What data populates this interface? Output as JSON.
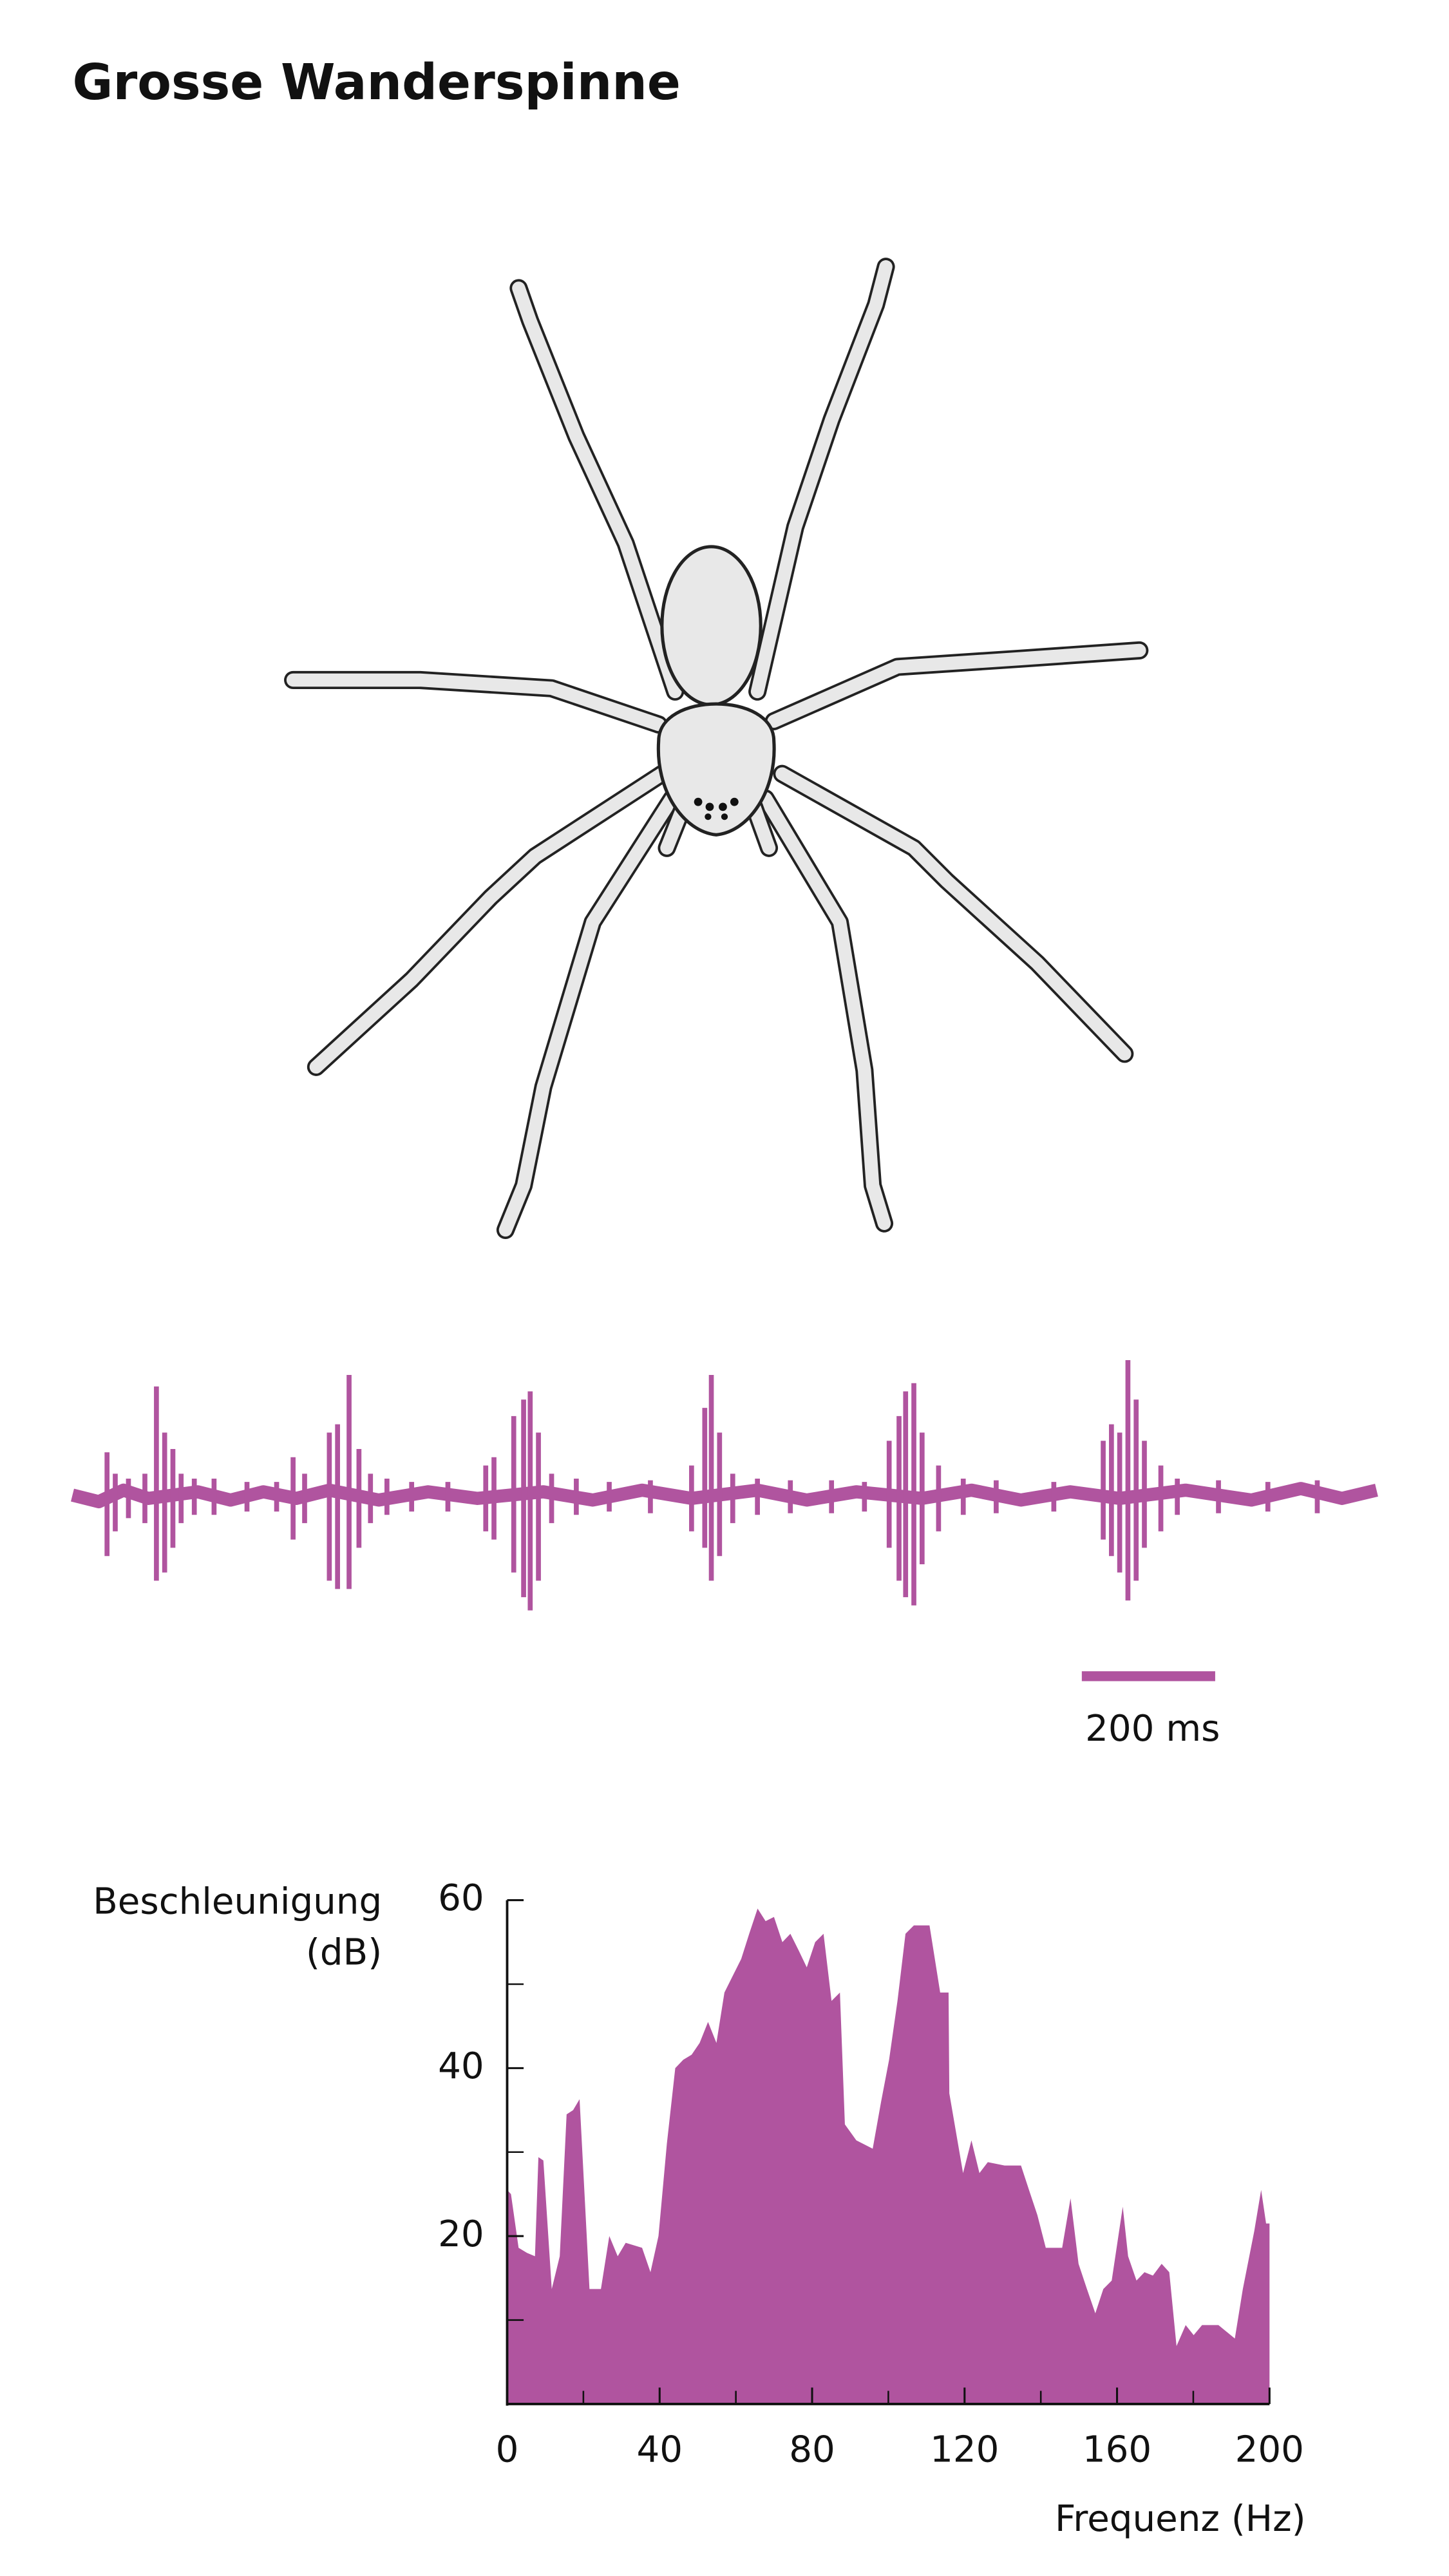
{
  "chart_data": {
    "type": "area",
    "title": "Grosse Wanderspinne",
    "annotation": "200 ms",
    "ylabel": [
      "Beschleunigung",
      "(dB)"
    ],
    "xlabel": "Frequenz (Hz)",
    "color": "#b0549f",
    "xlim": [
      0,
      200
    ],
    "xticks": [
      0,
      40,
      80,
      120,
      160,
      200
    ],
    "x_minor_ticks": [
      20,
      60,
      100,
      140,
      180
    ],
    "ylim": [
      0,
      60
    ],
    "yticks": [
      20,
      40,
      60
    ],
    "y_minor_ticks": [
      10,
      30,
      50
    ],
    "x": [
      0,
      1,
      3,
      5.2,
      7.3,
      8.2,
      9.5,
      11.7,
      13.8,
      15.6,
      17.3,
      19,
      21.6,
      24.6,
      26.8,
      29,
      31.1,
      35.4,
      37.6,
      39.7,
      41.9,
      44.1,
      46.2,
      48.4,
      50.5,
      52.7,
      54.9,
      57,
      59.2,
      61.4,
      63.5,
      65.7,
      67.8,
      70,
      72.2,
      74.3,
      76.5,
      78.6,
      80.8,
      83,
      85.1,
      87.3,
      88.6,
      91.6,
      95.9,
      98.1,
      100.2,
      102.4,
      104.5,
      106.7,
      108.6,
      110.8,
      113.6,
      115.8,
      116,
      119.6,
      121.8,
      123.9,
      126.1,
      130.5,
      134.8,
      136.9,
      139.1,
      141.3,
      145.6,
      147.8,
      149.9,
      152.1,
      154.3,
      156.4,
      158.6,
      161.5,
      162.9,
      165.1,
      167.2,
      169.4,
      171.7,
      173.7,
      175.6,
      178,
      180.1,
      182.3,
      186.6,
      190.9,
      193,
      196,
      197.8,
      199.1,
      200
    ],
    "values": [
      25.5,
      25,
      18.6,
      18,
      17.6,
      29.4,
      29,
      13.7,
      17.6,
      34.5,
      35,
      36.3,
      13.7,
      13.7,
      20,
      17.6,
      19.2,
      18.6,
      15.7,
      20,
      31,
      40,
      41,
      41.6,
      43,
      45.5,
      43,
      49,
      51,
      53,
      56,
      59,
      57.5,
      58,
      55,
      56,
      54,
      52,
      55,
      56,
      48,
      49,
      33.3,
      31.4,
      30.4,
      36,
      41,
      48,
      56,
      57,
      57,
      57,
      49,
      49,
      37,
      27.5,
      31.4,
      27.5,
      28.8,
      28.4,
      28.4,
      25.5,
      22.5,
      18.6,
      18.6,
      24.5,
      16.7,
      13.7,
      10.8,
      13.7,
      14.7,
      23.5,
      17.6,
      14.7,
      15.7,
      15.3,
      16.7,
      15.7,
      6.9,
      9.4,
      8.2,
      9.4,
      9.4,
      7.8,
      13.7,
      20.6,
      25.5,
      21.5,
      21.5
    ]
  }
}
